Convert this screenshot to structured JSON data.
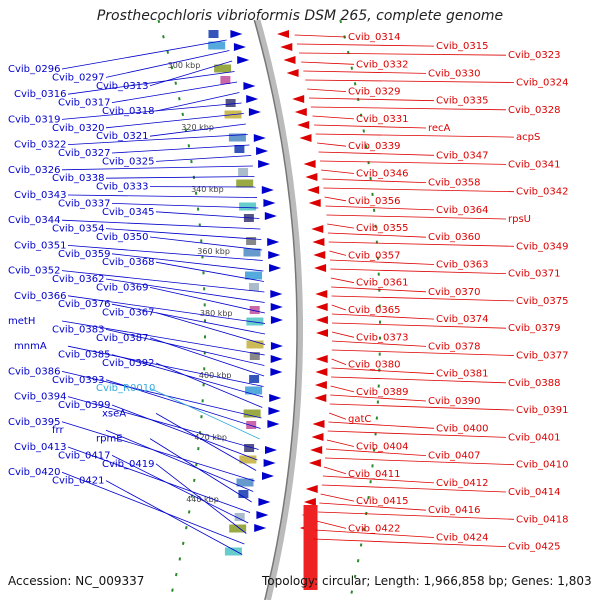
{
  "title": "Prosthecochloris vibrioformis DSM 265, complete genome",
  "footer": {
    "accession": "Accession: NC_009337",
    "summary": "Topology: circular; Length: 1,966,858 bp; Genes: 1,803"
  },
  "colors": {
    "forward": "#0000cc",
    "reverse": "#dd0000",
    "rna": "#33aadd",
    "backbone": "#999999",
    "tick": "#2a8a2a"
  },
  "ticks": [
    "300 kbp",
    "320 kbp",
    "340 kbp",
    "360 kbp",
    "380 kbp",
    "400 kbp",
    "420 kbp",
    "440 kbp"
  ],
  "left_labels": [
    "Cvib_0296",
    "Cvib_0297",
    "Cvib_0313",
    "Cvib_0316",
    "Cvib_0317",
    "Cvib_0318",
    "Cvib_0319",
    "Cvib_0320",
    "Cvib_0321",
    "Cvib_0322",
    "Cvib_0327",
    "Cvib_0325",
    "Cvib_0326",
    "Cvib_0338",
    "Cvib_0333",
    "Cvib_0343",
    "Cvib_0337",
    "Cvib_0345",
    "Cvib_0344",
    "Cvib_0354",
    "Cvib_0350",
    "Cvib_0351",
    "Cvib_0359",
    "Cvib_0368",
    "Cvib_0352",
    "Cvib_0362",
    "Cvib_0369",
    "Cvib_0366",
    "Cvib_0376",
    "Cvib_0367",
    "metH",
    "Cvib_0383",
    "Cvib_0387",
    "mnmA",
    "Cvib_0385",
    "Cvib_0392",
    "Cvib_0386",
    "Cvib_0393",
    "Cvib_R0010",
    "Cvib_0394",
    "Cvib_0399",
    "xseA",
    "Cvib_0395",
    "frr",
    "rpmE",
    "Cvib_0413",
    "Cvib_0417",
    "Cvib_0419",
    "Cvib_0420",
    "Cvib_0421"
  ],
  "right_labels": [
    "Cvib_0314",
    "Cvib_0315",
    "Cvib_0323",
    "Cvib_0332",
    "Cvib_0330",
    "Cvib_0324",
    "Cvib_0329",
    "Cvib_0335",
    "Cvib_0328",
    "Cvib_0331",
    "recA",
    "acpS",
    "Cvib_0339",
    "Cvib_0347",
    "Cvib_0341",
    "Cvib_0346",
    "Cvib_0358",
    "Cvib_0342",
    "Cvib_0356",
    "Cvib_0364",
    "rpsU",
    "Cvib_0355",
    "Cvib_0360",
    "Cvib_0349",
    "Cvib_0357",
    "Cvib_0363",
    "Cvib_0371",
    "Cvib_0361",
    "Cvib_0370",
    "Cvib_0375",
    "Cvib_0365",
    "Cvib_0374",
    "Cvib_0379",
    "Cvib_0373",
    "Cvib_0378",
    "Cvib_0377",
    "Cvib_0380",
    "Cvib_0381",
    "Cvib_0388",
    "Cvib_0389",
    "Cvib_0390",
    "Cvib_0391",
    "gatC",
    "Cvib_0400",
    "Cvib_0401",
    "Cvib_0404",
    "Cvib_0407",
    "Cvib_0410",
    "Cvib_0411",
    "Cvib_0412",
    "Cvib_0414",
    "Cvib_0415",
    "Cvib_0416",
    "Cvib_0418",
    "Cvib_0422",
    "Cvib_0424",
    "Cvib_0425"
  ]
}
